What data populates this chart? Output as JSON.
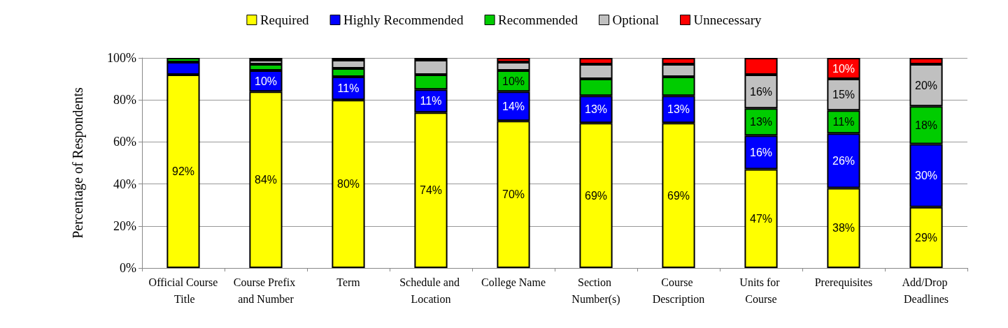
{
  "chart_data": {
    "type": "bar",
    "stacked": true,
    "ylabel": "Percentage of Respondents",
    "categories": [
      "Official Course Title",
      "Course Prefix and Number",
      "Term",
      "Schedule and Location",
      "College Name",
      "Section Number(s)",
      "Course Description",
      "Units for Course",
      "Prerequisites",
      "Add/Drop Deadlines"
    ],
    "series": [
      {
        "name": "Required",
        "color": "#ffff00",
        "values": [
          92,
          84,
          80,
          74,
          70,
          69,
          69,
          47,
          38,
          29
        ],
        "value_labels": [
          "92%",
          "84%",
          "80%",
          "74%",
          "70%",
          "69%",
          "69%",
          "47%",
          "38%",
          "29%"
        ]
      },
      {
        "name": "Highly Recommended",
        "color": "#0000ff",
        "values": [
          6,
          10,
          11,
          11,
          14,
          13,
          13,
          16,
          26,
          30
        ],
        "value_labels": [
          null,
          "10%",
          "11%",
          "11%",
          "14%",
          "13%",
          "13%",
          "16%",
          "26%",
          "30%"
        ]
      },
      {
        "name": "Recommended",
        "color": "#00cc00",
        "values": [
          2,
          3,
          4,
          7,
          10,
          8,
          9,
          13,
          11,
          18
        ],
        "value_labels": [
          null,
          null,
          null,
          null,
          "10%",
          null,
          null,
          "13%",
          "11%",
          "18%"
        ]
      },
      {
        "name": "Optional",
        "color": "#c0c0c0",
        "values": [
          0,
          2,
          4,
          7,
          4,
          7,
          6,
          16,
          15,
          20
        ],
        "value_labels": [
          null,
          null,
          null,
          null,
          null,
          null,
          null,
          "16%",
          "15%",
          "20%"
        ]
      },
      {
        "name": "Unnecessary",
        "color": "#ff0000",
        "values": [
          0,
          1,
          1,
          1,
          2,
          3,
          3,
          8,
          10,
          3
        ],
        "value_labels": [
          null,
          null,
          null,
          null,
          null,
          null,
          null,
          null,
          "10%",
          null
        ]
      }
    ],
    "ylim": [
      0,
      100
    ],
    "yticks": [
      {
        "value": 0,
        "label": "0%"
      },
      {
        "value": 20,
        "label": "20%"
      },
      {
        "value": 40,
        "label": "40%"
      },
      {
        "value": 60,
        "label": "60%"
      },
      {
        "value": 80,
        "label": "80%"
      },
      {
        "value": 100,
        "label": "100%"
      }
    ],
    "grid": "y",
    "legend": "top"
  }
}
